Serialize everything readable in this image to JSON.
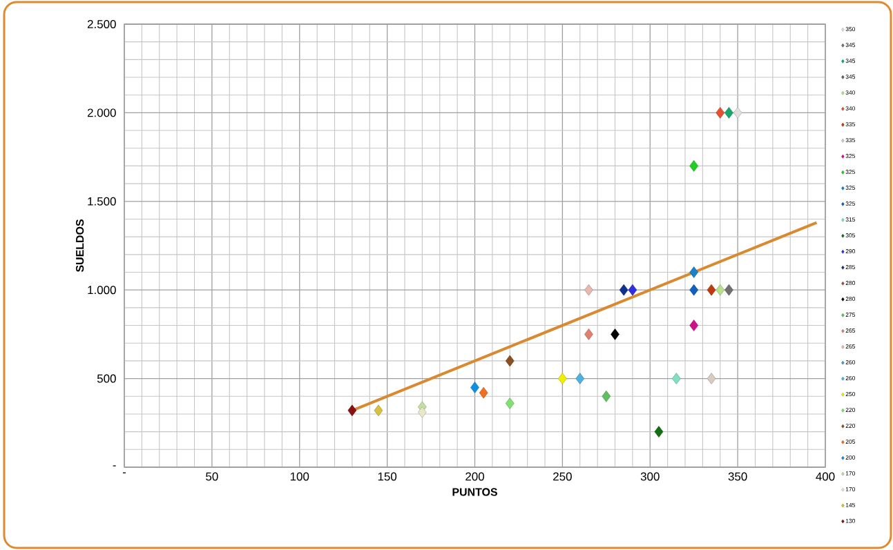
{
  "chart_data": {
    "type": "scatter",
    "xlabel": "PUNTOS",
    "ylabel": "SUELDOS",
    "xlim": [
      0,
      400
    ],
    "xticks": [
      {
        "value": 0,
        "label": "-"
      },
      50,
      100,
      150,
      200,
      250,
      300,
      350,
      400
    ],
    "ylim": [
      0,
      2500
    ],
    "yticks": [
      {
        "value": 0,
        "label": "-"
      },
      500,
      {
        "value": 1000,
        "label": "1.000"
      },
      {
        "value": 1500,
        "label": "1.500"
      },
      {
        "value": 2000,
        "label": "2.000"
      },
      {
        "value": 2500,
        "label": "2.500"
      }
    ],
    "grid": true,
    "legend": "right",
    "marker": "diamond",
    "series": [
      {
        "name": "350",
        "color": "#e0e0e0",
        "x": [
          350
        ],
        "values": [
          2000
        ]
      },
      {
        "name": "345",
        "color": "#707070",
        "x": [
          345
        ],
        "values": [
          1000
        ]
      },
      {
        "name": "345",
        "color": "#1aa86a",
        "x": [
          345
        ],
        "values": [
          2000
        ]
      },
      {
        "name": "345",
        "color": "#606060",
        "x": [
          null
        ],
        "values": [
          null
        ]
      },
      {
        "name": "340",
        "color": "#b8e08a",
        "x": [
          340
        ],
        "values": [
          1000
        ]
      },
      {
        "name": "340",
        "color": "#e85030",
        "x": [
          340
        ],
        "values": [
          2000
        ]
      },
      {
        "name": "335",
        "color": "#c03a10",
        "x": [
          335
        ],
        "values": [
          1000
        ]
      },
      {
        "name": "335",
        "color": "#d8ccc0",
        "x": [
          335
        ],
        "values": [
          500
        ]
      },
      {
        "name": "325",
        "color": "#d0108a",
        "x": [
          325
        ],
        "values": [
          800
        ]
      },
      {
        "name": "325",
        "color": "#20d020",
        "x": [
          325
        ],
        "values": [
          1700
        ]
      },
      {
        "name": "325",
        "color": "#1a80c8",
        "x": [
          325
        ],
        "values": [
          1100
        ]
      },
      {
        "name": "325",
        "color": "#1060c0",
        "x": [
          325
        ],
        "values": [
          1000
        ]
      },
      {
        "name": "315",
        "color": "#80e0c0",
        "x": [
          315
        ],
        "values": [
          500
        ]
      },
      {
        "name": "305",
        "color": "#107010",
        "x": [
          305
        ],
        "values": [
          200
        ]
      },
      {
        "name": "290",
        "color": "#3030e0",
        "x": [
          290
        ],
        "values": [
          1000
        ]
      },
      {
        "name": "285",
        "color": "#103090",
        "x": [
          285
        ],
        "values": [
          1000
        ]
      },
      {
        "name": "280",
        "color": "#a05040",
        "x": [
          null
        ],
        "values": [
          null
        ]
      },
      {
        "name": "280",
        "color": "#000000",
        "x": [
          280
        ],
        "values": [
          750
        ]
      },
      {
        "name": "275",
        "color": "#60c060",
        "x": [
          275
        ],
        "values": [
          400
        ]
      },
      {
        "name": "265",
        "color": "#e08070",
        "x": [
          265
        ],
        "values": [
          750
        ]
      },
      {
        "name": "265",
        "color": "#e8b8b0",
        "x": [
          265
        ],
        "values": [
          1000
        ]
      },
      {
        "name": "260",
        "color": "#40a0d0",
        "x": [
          null
        ],
        "values": [
          null
        ]
      },
      {
        "name": "260",
        "color": "#50b0e0",
        "x": [
          260
        ],
        "values": [
          500
        ]
      },
      {
        "name": "250",
        "color": "#f0f000",
        "x": [
          250
        ],
        "values": [
          500
        ]
      },
      {
        "name": "220",
        "color": "#80e070",
        "x": [
          220
        ],
        "values": [
          360
        ]
      },
      {
        "name": "220",
        "color": "#8a5020",
        "x": [
          220
        ],
        "values": [
          600
        ]
      },
      {
        "name": "205",
        "color": "#f07020",
        "x": [
          205
        ],
        "values": [
          420
        ]
      },
      {
        "name": "200",
        "color": "#1090e0",
        "x": [
          200
        ],
        "values": [
          450
        ]
      },
      {
        "name": "170",
        "color": "#c0e0a0",
        "x": [
          170
        ],
        "values": [
          340
        ]
      },
      {
        "name": "170",
        "color": "#e8e8c8",
        "x": [
          170
        ],
        "values": [
          310
        ]
      },
      {
        "name": "145",
        "color": "#d8c040",
        "x": [
          145
        ],
        "values": [
          320
        ]
      },
      {
        "name": "130",
        "color": "#8a1010",
        "x": [
          130
        ],
        "values": [
          320
        ]
      },
      {
        "type": "line",
        "marker": "none",
        "color": "#d98a30",
        "x": [
          130,
          395
        ],
        "values": [
          320,
          1380
        ]
      }
    ]
  }
}
